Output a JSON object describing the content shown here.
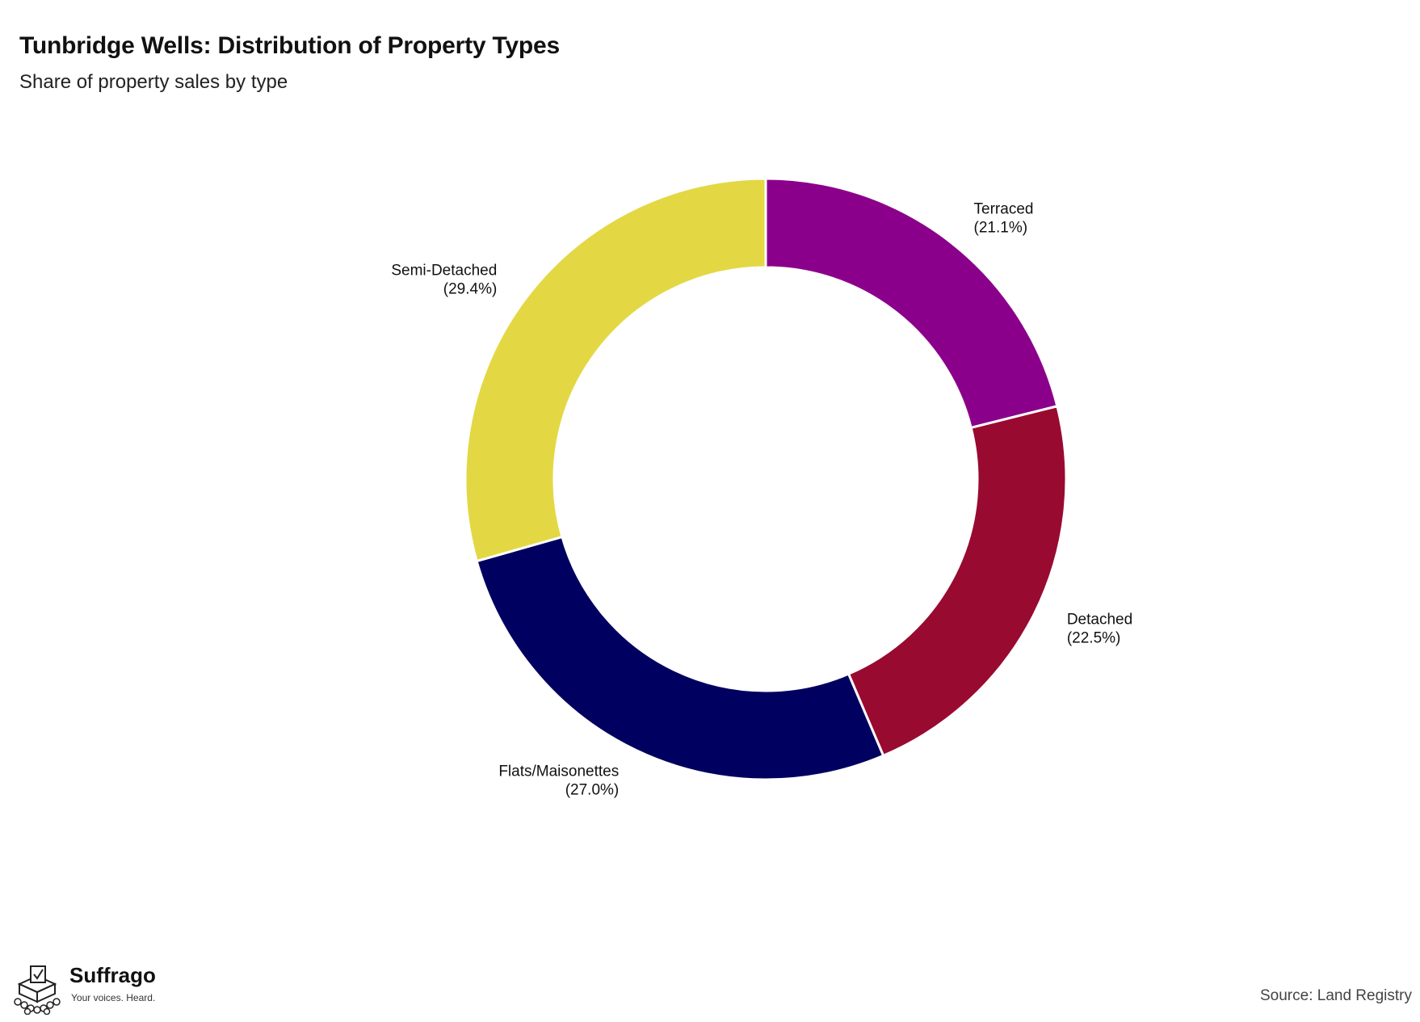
{
  "header": {
    "title": "Tunbridge Wells: Distribution of Property Types",
    "subtitle": "Share of property sales by type"
  },
  "chart_data": {
    "type": "pie",
    "donut": true,
    "title": "Tunbridge Wells: Distribution of Property Types",
    "subtitle": "Share of property sales by type",
    "categories": [
      "Terraced",
      "Detached",
      "Flats/Maisonettes",
      "Semi-Detached"
    ],
    "values": [
      21.1,
      22.5,
      27.0,
      29.4
    ],
    "value_labels": [
      "(21.1%)",
      "(22.5%)",
      "(27.0%)",
      "(29.4%)"
    ],
    "colors": [
      "#8B008B",
      "#990A30",
      "#000060",
      "#E3D844"
    ],
    "start_angle": "12 o'clock",
    "direction": "clockwise",
    "legend": "none"
  },
  "footer": {
    "brand_name": "Suffrago",
    "brand_tagline": "Your voices. Heard.",
    "source": "Source: Land Registry",
    "brand_icon": "ballot-box-icon"
  }
}
